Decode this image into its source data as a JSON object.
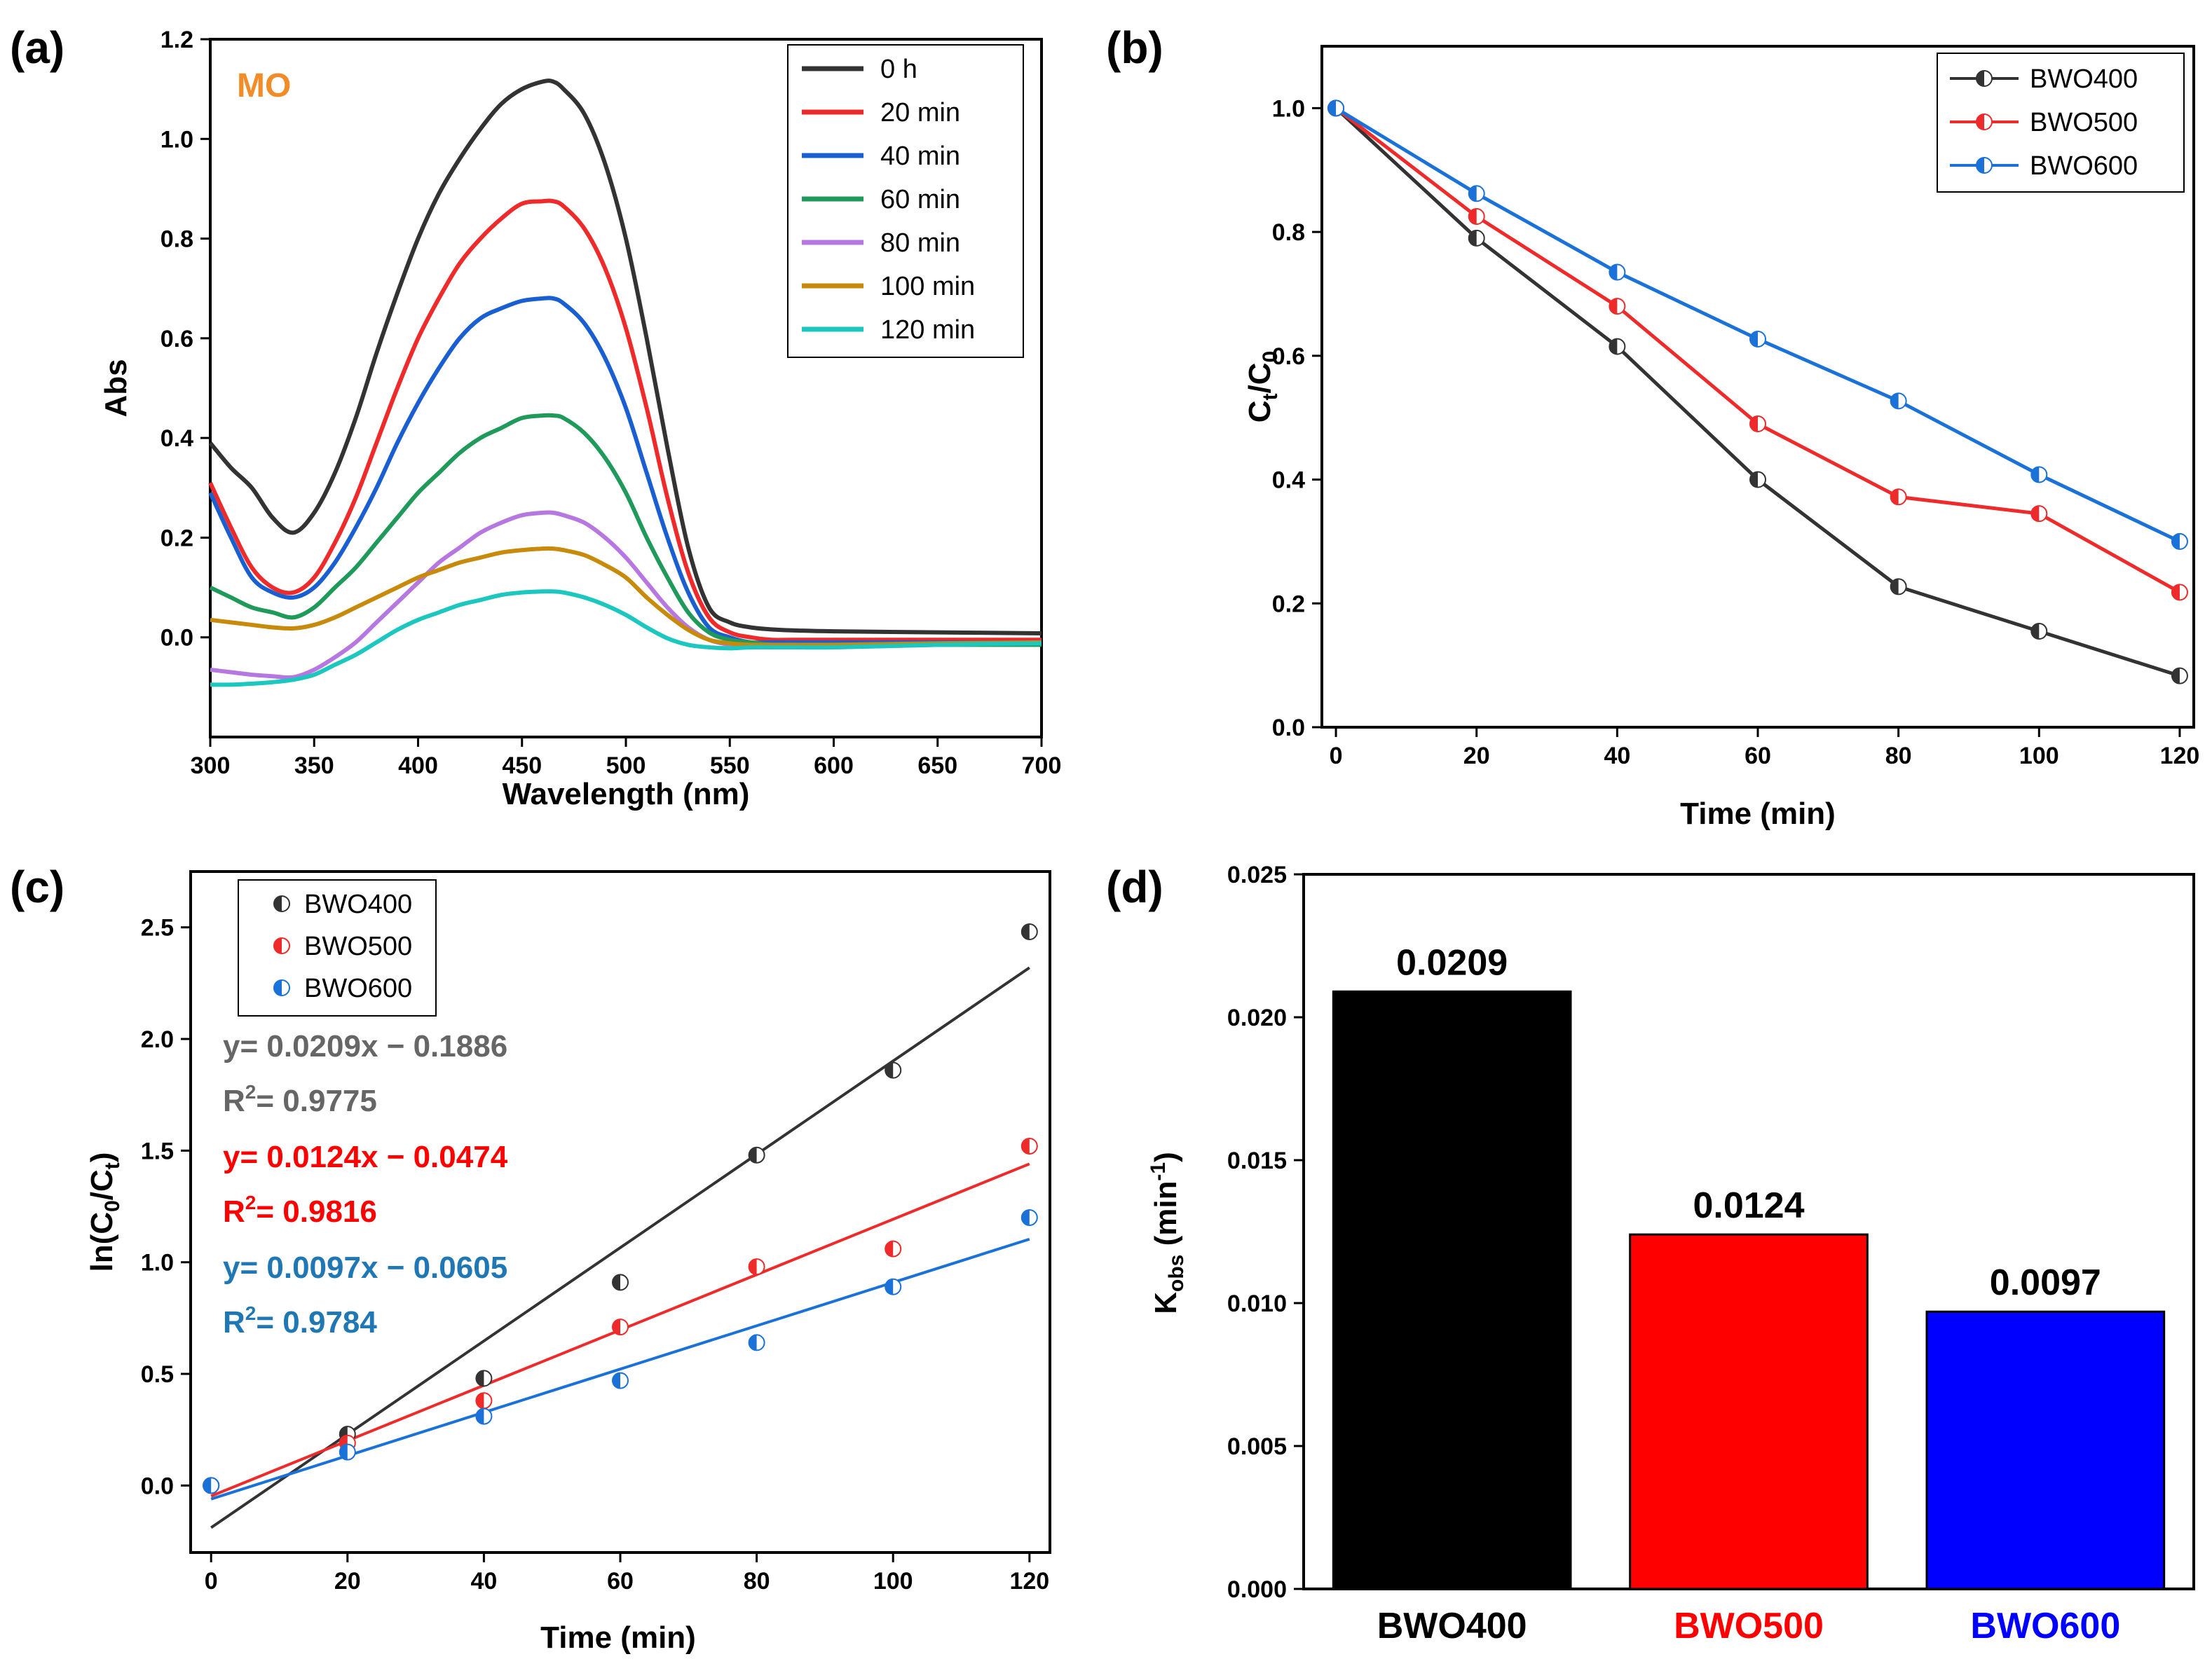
{
  "chart_data": [
    {
      "panel": "(a)",
      "type": "line",
      "annotation": "MO",
      "annotation_color": "#f28c28",
      "xlabel": "Wavelength (nm)",
      "ylabel": "Abs",
      "xlim": [
        300,
        700
      ],
      "ylim": [
        -0.2,
        1.2
      ],
      "xticks": [
        300,
        350,
        400,
        450,
        500,
        550,
        600,
        650,
        700
      ],
      "yticks": [
        0.0,
        0.2,
        0.4,
        0.6,
        0.8,
        1.0,
        1.2
      ],
      "x": [
        300,
        310,
        320,
        330,
        340,
        350,
        360,
        370,
        380,
        390,
        400,
        410,
        420,
        430,
        440,
        450,
        460,
        465,
        470,
        480,
        490,
        500,
        510,
        520,
        530,
        540,
        550,
        560,
        570,
        580,
        600,
        650,
        700
      ],
      "series": [
        {
          "name": "0 h",
          "color": "#333333",
          "values": [
            0.39,
            0.34,
            0.3,
            0.24,
            0.21,
            0.25,
            0.33,
            0.44,
            0.57,
            0.69,
            0.8,
            0.89,
            0.96,
            1.02,
            1.07,
            1.1,
            1.115,
            1.115,
            1.1,
            1.05,
            0.95,
            0.8,
            0.6,
            0.38,
            0.18,
            0.06,
            0.03,
            0.02,
            0.016,
            0.014,
            0.012,
            0.01,
            0.008
          ]
        },
        {
          "name": "20 min",
          "color": "#ee2a2a",
          "values": [
            0.31,
            0.22,
            0.14,
            0.1,
            0.09,
            0.12,
            0.19,
            0.28,
            0.39,
            0.5,
            0.6,
            0.68,
            0.75,
            0.8,
            0.84,
            0.87,
            0.875,
            0.875,
            0.865,
            0.82,
            0.74,
            0.62,
            0.46,
            0.28,
            0.13,
            0.04,
            0.01,
            0.0,
            -0.005,
            -0.005,
            -0.005,
            -0.005,
            -0.005
          ]
        },
        {
          "name": "40 min",
          "color": "#1a5fd1",
          "values": [
            0.29,
            0.2,
            0.12,
            0.09,
            0.08,
            0.1,
            0.15,
            0.22,
            0.3,
            0.39,
            0.47,
            0.54,
            0.6,
            0.64,
            0.66,
            0.675,
            0.68,
            0.68,
            0.67,
            0.63,
            0.56,
            0.46,
            0.33,
            0.2,
            0.09,
            0.02,
            0.0,
            -0.01,
            -0.01,
            -0.01,
            -0.01,
            -0.01,
            -0.01
          ]
        },
        {
          "name": "60 min",
          "color": "#1f9a5a",
          "values": [
            0.1,
            0.08,
            0.06,
            0.05,
            0.04,
            0.06,
            0.1,
            0.14,
            0.19,
            0.24,
            0.29,
            0.33,
            0.37,
            0.4,
            0.42,
            0.44,
            0.445,
            0.445,
            0.44,
            0.41,
            0.36,
            0.29,
            0.2,
            0.12,
            0.05,
            0.01,
            -0.005,
            -0.01,
            -0.015,
            -0.015,
            -0.015,
            -0.015,
            -0.015
          ]
        },
        {
          "name": "80 min",
          "color": "#b777e0",
          "values": [
            -0.065,
            -0.07,
            -0.075,
            -0.078,
            -0.08,
            -0.065,
            -0.04,
            -0.01,
            0.03,
            0.07,
            0.11,
            0.15,
            0.18,
            0.21,
            0.23,
            0.245,
            0.25,
            0.25,
            0.245,
            0.23,
            0.2,
            0.16,
            0.11,
            0.06,
            0.02,
            -0.005,
            -0.015,
            -0.02,
            -0.02,
            -0.02,
            -0.02,
            -0.015,
            -0.01
          ]
        },
        {
          "name": "100 min",
          "color": "#c78a0a",
          "values": [
            0.035,
            0.03,
            0.025,
            0.02,
            0.018,
            0.025,
            0.04,
            0.06,
            0.08,
            0.1,
            0.12,
            0.135,
            0.15,
            0.16,
            0.17,
            0.175,
            0.178,
            0.178,
            0.175,
            0.165,
            0.145,
            0.12,
            0.08,
            0.045,
            0.015,
            -0.005,
            -0.012,
            -0.015,
            -0.015,
            -0.015,
            -0.015,
            -0.012,
            -0.01
          ]
        },
        {
          "name": "120 min",
          "color": "#1cc7c0",
          "values": [
            -0.095,
            -0.095,
            -0.093,
            -0.09,
            -0.085,
            -0.075,
            -0.055,
            -0.035,
            -0.01,
            0.015,
            0.035,
            0.05,
            0.065,
            0.075,
            0.085,
            0.09,
            0.092,
            0.092,
            0.09,
            0.08,
            0.065,
            0.045,
            0.02,
            -0.002,
            -0.015,
            -0.02,
            -0.022,
            -0.02,
            -0.02,
            -0.02,
            -0.02,
            -0.015,
            -0.012
          ]
        }
      ]
    },
    {
      "panel": "(b)",
      "type": "line",
      "xlabel": "Time (min)",
      "ylabel": "Ct/C0",
      "ylabel_main": "C",
      "ylabel_sub1": "t",
      "ylabel_sep": "/C",
      "ylabel_sub2": "0",
      "xlim": [
        -2,
        122
      ],
      "ylim": [
        0.0,
        1.1
      ],
      "xticks": [
        0,
        20,
        40,
        60,
        80,
        100,
        120
      ],
      "yticks": [
        0.0,
        0.2,
        0.4,
        0.6,
        0.8,
        1.0
      ],
      "x": [
        0,
        20,
        40,
        60,
        80,
        100,
        120
      ],
      "series": [
        {
          "name": "BWO400",
          "color": "#333333",
          "values": [
            1.0,
            0.79,
            0.615,
            0.4,
            0.227,
            0.155,
            0.083
          ]
        },
        {
          "name": "BWO500",
          "color": "#ee2a2a",
          "values": [
            1.0,
            0.825,
            0.68,
            0.49,
            0.372,
            0.345,
            0.218
          ]
        },
        {
          "name": "BWO600",
          "color": "#1a72d9",
          "values": [
            1.0,
            0.862,
            0.735,
            0.627,
            0.527,
            0.408,
            0.3
          ]
        }
      ]
    },
    {
      "panel": "(c)",
      "type": "scatter",
      "xlabel": "Time (min)",
      "ylabel": "ln(C0/Ct)",
      "ylabel_pre": "ln(C",
      "ylabel_sub1": "0",
      "ylabel_sep": "/C",
      "ylabel_sub2": "t",
      "ylabel_post": ")",
      "xlim": [
        -3,
        123
      ],
      "ylim": [
        -0.3,
        2.75
      ],
      "xticks": [
        0,
        20,
        40,
        60,
        80,
        100,
        120
      ],
      "yticks": [
        0.0,
        0.5,
        1.0,
        1.5,
        2.0,
        2.5
      ],
      "x": [
        0,
        20,
        40,
        60,
        80,
        100,
        120
      ],
      "series": [
        {
          "name": "BWO400",
          "color": "#333333",
          "values": [
            0.0,
            0.23,
            0.48,
            0.91,
            1.48,
            1.86,
            2.48
          ],
          "fit": {
            "slope": 0.0209,
            "intercept": -0.1886
          },
          "equation": "y= 0.0209x − 0.1886",
          "r2_label": "R",
          "r2_sup": "2",
          "r2_value": "= 0.9775",
          "eq_color": "#666666"
        },
        {
          "name": "BWO500",
          "color": "#ee2a2a",
          "values": [
            0.0,
            0.19,
            0.38,
            0.71,
            0.98,
            1.06,
            1.52
          ],
          "fit": {
            "slope": 0.0124,
            "intercept": -0.0474
          },
          "equation": "y= 0.0124x − 0.0474",
          "r2_label": "R",
          "r2_sup": "2",
          "r2_value": "= 0.9816",
          "eq_color": "#ff0000"
        },
        {
          "name": "BWO600",
          "color": "#1a72d9",
          "values": [
            0.0,
            0.15,
            0.31,
            0.47,
            0.64,
            0.89,
            1.2
          ],
          "fit": {
            "slope": 0.0097,
            "intercept": -0.0605
          },
          "equation": "y= 0.0097x − 0.0605",
          "r2_label": "R",
          "r2_sup": "2",
          "r2_value": "= 0.9784",
          "eq_color": "#1f77b4"
        }
      ]
    },
    {
      "panel": "(d)",
      "type": "bar",
      "ylabel": "Kobs (min-1)",
      "ylabel_main": "K",
      "ylabel_sub": "obs",
      "ylabel_unit_pre": " (min",
      "ylabel_sup": "-1",
      "ylabel_unit_post": ")",
      "ylim": [
        0.0,
        0.025
      ],
      "yticks": [
        "0.000",
        "0.005",
        "0.010",
        "0.015",
        "0.020",
        "0.025"
      ],
      "categories": [
        "BWO400",
        "BWO500",
        "BWO600"
      ],
      "values": [
        0.0209,
        0.0124,
        0.0097
      ],
      "labels": [
        "0.0209",
        "0.0124",
        "0.0097"
      ],
      "colors": [
        "#000000",
        "#ff0000",
        "#0000ff"
      ],
      "category_colors": [
        "#000000",
        "#ff0000",
        "#0000ff"
      ]
    }
  ]
}
